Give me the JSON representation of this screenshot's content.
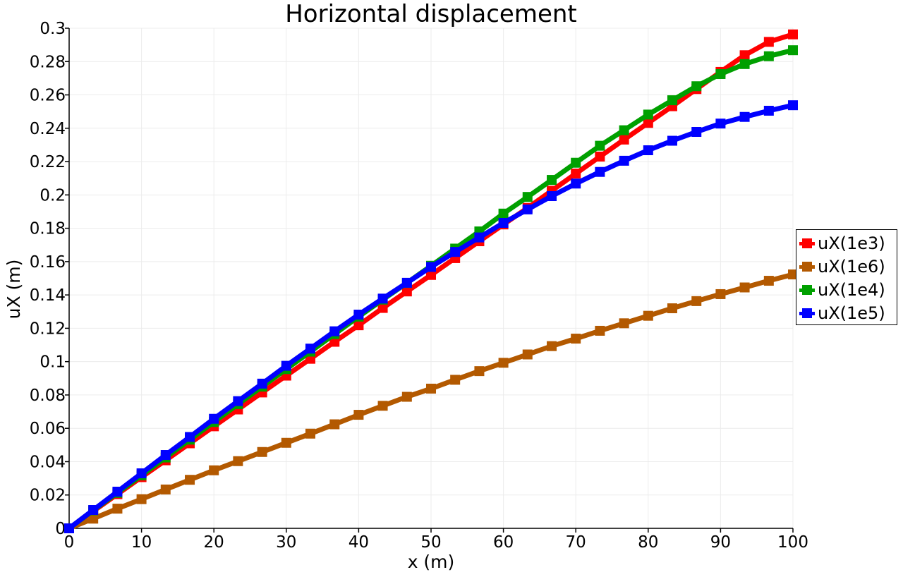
{
  "chart_data": {
    "type": "line",
    "title": "Horizontal displacement",
    "xlabel": "x (m)",
    "ylabel": "uX (m)",
    "xlim": [
      0,
      100
    ],
    "ylim": [
      0,
      0.3
    ],
    "x_ticks": [
      "0",
      "10",
      "20",
      "30",
      "40",
      "50",
      "60",
      "70",
      "80",
      "90",
      "100"
    ],
    "y_ticks": [
      "0",
      "0.02",
      "0.04",
      "0.06",
      "0.08",
      "0.1",
      "0.12",
      "0.14",
      "0.16",
      "0.18",
      "0.2",
      "0.22",
      "0.24",
      "0.26",
      "0.28",
      "0.3"
    ],
    "grid": true,
    "legend_position": "right",
    "x": [
      0,
      3.33,
      6.67,
      10,
      13.33,
      16.67,
      20,
      23.33,
      26.67,
      30,
      33.33,
      36.67,
      40,
      43.33,
      46.67,
      50,
      53.33,
      56.67,
      60,
      63.33,
      66.67,
      70,
      73.33,
      76.67,
      80,
      83.33,
      86.67,
      90,
      93.33,
      96.67,
      100
    ],
    "series": [
      {
        "name": "uX(1e3)",
        "color": "#ff0000",
        "values": [
          0,
          0.0103,
          0.0205,
          0.0307,
          0.0408,
          0.051,
          0.0612,
          0.0713,
          0.0815,
          0.0916,
          0.1017,
          0.1119,
          0.1218,
          0.1322,
          0.1421,
          0.152,
          0.1621,
          0.1722,
          0.1823,
          0.1922,
          0.2025,
          0.2128,
          0.223,
          0.2332,
          0.2432,
          0.2532,
          0.2635,
          0.2738,
          0.2838,
          0.2918,
          0.2963
        ]
      },
      {
        "name": "uX(1e6)",
        "color": "#b35900",
        "values": [
          0,
          0.0058,
          0.0118,
          0.0175,
          0.0233,
          0.0291,
          0.0348,
          0.0403,
          0.0458,
          0.0513,
          0.0568,
          0.0624,
          0.0681,
          0.0735,
          0.0789,
          0.0838,
          0.0891,
          0.0943,
          0.0993,
          0.1043,
          0.1093,
          0.1138,
          0.1185,
          0.123,
          0.1275,
          0.132,
          0.1363,
          0.1405,
          0.1445,
          0.1485,
          0.1523
        ]
      },
      {
        "name": "uX(1e4)",
        "color": "#00a000",
        "values": [
          0,
          0.0108,
          0.0213,
          0.0318,
          0.0425,
          0.0532,
          0.0638,
          0.0745,
          0.085,
          0.0955,
          0.106,
          0.1165,
          0.127,
          0.1372,
          0.1472,
          0.1575,
          0.1678,
          0.1781,
          0.1888,
          0.1988,
          0.209,
          0.2193,
          0.2295,
          0.2388,
          0.2482,
          0.2568,
          0.2652,
          0.2725,
          0.2785,
          0.2832,
          0.2868
        ]
      },
      {
        "name": "uX(1e5)",
        "color": "#0000ff",
        "values": [
          0,
          0.011,
          0.022,
          0.033,
          0.044,
          0.0548,
          0.0657,
          0.0763,
          0.0868,
          0.0975,
          0.1078,
          0.1182,
          0.1282,
          0.1378,
          0.1473,
          0.1568,
          0.1658,
          0.1745,
          0.1832,
          0.1913,
          0.1993,
          0.2068,
          0.2138,
          0.2205,
          0.2268,
          0.2325,
          0.2378,
          0.2428,
          0.2468,
          0.2505,
          0.2538
        ]
      }
    ]
  }
}
